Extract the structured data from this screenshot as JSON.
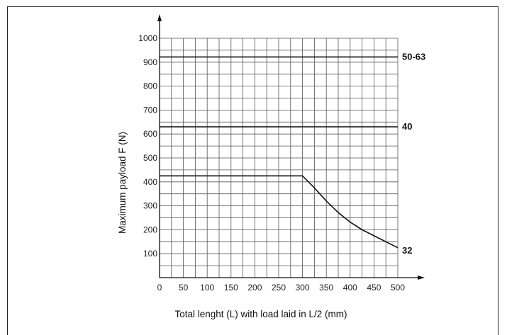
{
  "chart_data": {
    "type": "line",
    "xlabel": "Total lenght (L) with load laid in L/2 (mm)",
    "ylabel": "Maximum payload F (N)",
    "xlim": [
      0,
      500
    ],
    "ylim": [
      0,
      1000
    ],
    "x_ticks": [
      0,
      50,
      100,
      150,
      200,
      250,
      300,
      350,
      400,
      450,
      500
    ],
    "y_ticks": [
      100,
      200,
      300,
      400,
      500,
      600,
      700,
      800,
      900,
      1000
    ],
    "grid": true,
    "series": [
      {
        "name": "50-63",
        "x": [
          0,
          500
        ],
        "y": [
          922,
          922
        ]
      },
      {
        "name": "40",
        "x": [
          0,
          500
        ],
        "y": [
          630,
          630
        ]
      },
      {
        "name": "32",
        "x": [
          0,
          300,
          325,
          350,
          375,
          400,
          425,
          450,
          475,
          500
        ],
        "y": [
          425,
          425,
          375,
          320,
          272,
          232,
          200,
          175,
          150,
          125
        ]
      }
    ]
  }
}
